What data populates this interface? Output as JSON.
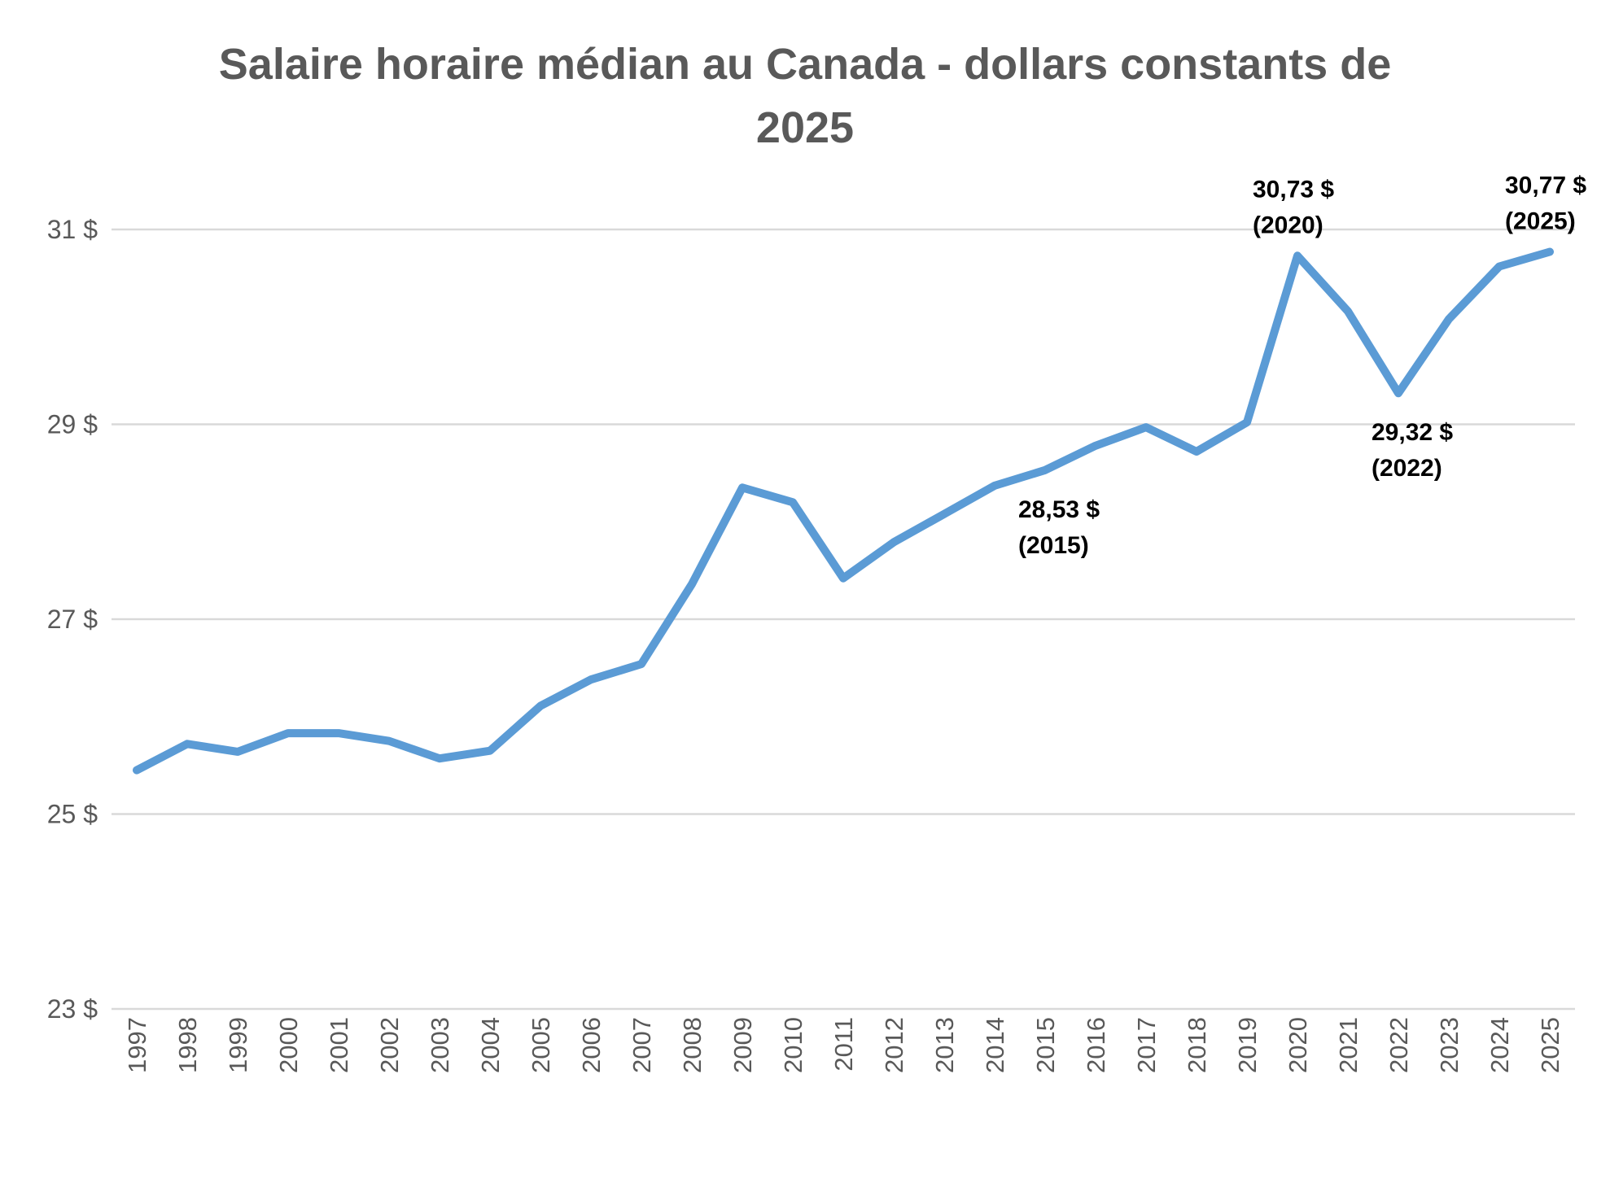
{
  "chart_data": {
    "type": "line",
    "title_line1": "Salaire horaire médian au Canada - dollars constants de",
    "title_line2": "2025",
    "xlabel": "",
    "ylabel": "",
    "ylim": [
      23,
      31
    ],
    "y_ticks": [
      "23 $",
      "25 $",
      "27 $",
      "29 $",
      "31 $"
    ],
    "y_tick_values": [
      23,
      25,
      27,
      29,
      31
    ],
    "grid": true,
    "legend": "none",
    "line_color": "#5B9BD5",
    "x": [
      "1997",
      "1998",
      "1999",
      "2000",
      "2001",
      "2002",
      "2003",
      "2004",
      "2005",
      "2006",
      "2007",
      "2008",
      "2009",
      "2010",
      "2011",
      "2012",
      "2013",
      "2014",
      "2015",
      "2016",
      "2017",
      "2018",
      "2019",
      "2020",
      "2021",
      "2022",
      "2023",
      "2024",
      "2025"
    ],
    "series": [
      {
        "values": [
          25.45,
          25.72,
          25.64,
          25.83,
          25.83,
          25.75,
          25.57,
          25.65,
          26.11,
          26.38,
          26.54,
          27.36,
          28.35,
          28.2,
          27.42,
          27.79,
          28.08,
          28.37,
          28.53,
          28.78,
          28.97,
          28.72,
          29.02,
          30.73,
          30.16,
          29.32,
          30.08,
          30.62,
          30.77
        ]
      }
    ],
    "annotations": [
      {
        "year": "2015",
        "value": 28.53,
        "line1": "28,53 $",
        "line2": "(2015)",
        "position": "below"
      },
      {
        "year": "2020",
        "value": 30.73,
        "line1": "30,73 $",
        "line2": "(2020)",
        "position": "above"
      },
      {
        "year": "2022",
        "value": 29.32,
        "line1": "29,32 $",
        "line2": "(2022)",
        "position": "below"
      },
      {
        "year": "2025",
        "value": 30.77,
        "line1": "30,77 $",
        "line2": "(2025)",
        "position": "above"
      }
    ]
  }
}
